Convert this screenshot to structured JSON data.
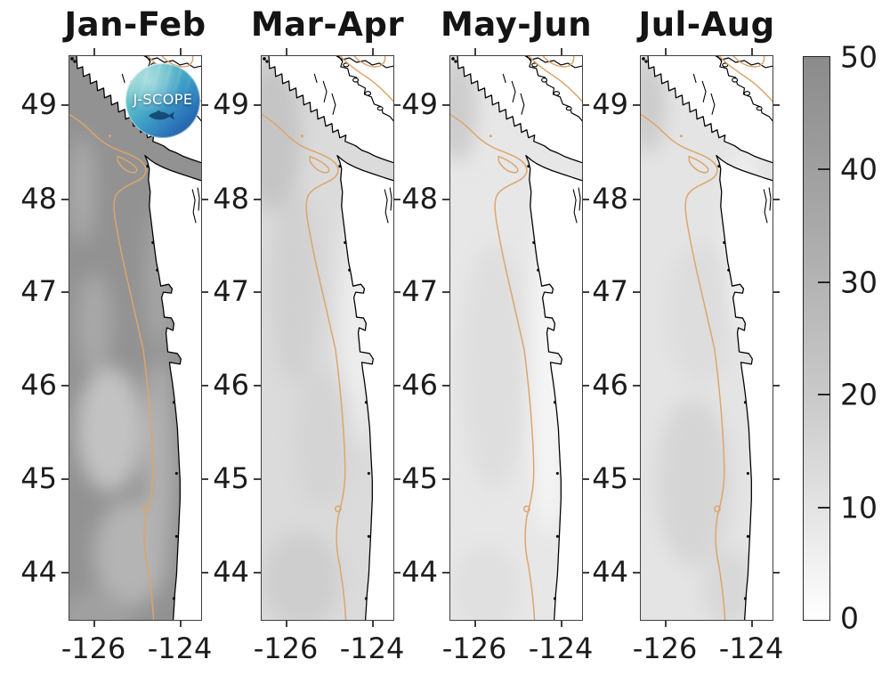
{
  "figure": {
    "background": "#ffffff",
    "logo": {
      "text": "J-SCOPE"
    }
  },
  "panels": [
    {
      "title": "Jan-Feb"
    },
    {
      "title": "Mar-Apr"
    },
    {
      "title": "May-Jun"
    },
    {
      "title": "Jul-Aug"
    }
  ],
  "axes": {
    "lat_ticks": [
      "49",
      "48",
      "47",
      "46",
      "45",
      "44"
    ],
    "lon_ticks": [
      "-126",
      "-124"
    ]
  },
  "colorbar": {
    "ticks": [
      "50",
      "40",
      "30",
      "20",
      "10",
      "0"
    ],
    "top_color": "#8b8b8b",
    "bottom_color": "#ffffff"
  },
  "colors": {
    "contour": "#dca56b",
    "coastline": "#000000",
    "land": "#ffffff"
  },
  "chart_data": {
    "type": "heatmap",
    "subtype": "geographic small-multiple maps with shared gray colorbar",
    "panels": [
      {
        "title": "Jan-Feb",
        "approx_offshore_value": 40,
        "approx_value_range": [
          20,
          48
        ],
        "tone": "dark gray — highest values, lighter patches nearshore and southwest"
      },
      {
        "title": "Mar-Apr",
        "approx_offshore_value": 15,
        "approx_value_range": [
          5,
          25
        ],
        "tone": "light gray, slightly darker in northwest corner"
      },
      {
        "title": "May-Jun",
        "approx_offshore_value": 9,
        "approx_value_range": [
          2,
          18
        ],
        "tone": "very light gray, nearly white nearshore"
      },
      {
        "title": "Jul-Aug",
        "approx_offshore_value": 12,
        "approx_value_range": [
          3,
          20
        ],
        "tone": "very light gray with slightly darker center-south blob"
      }
    ],
    "x_axis": {
      "ticks": [
        -126,
        -124
      ],
      "range": [
        -126.6,
        -123.5
      ],
      "label": ""
    },
    "y_axis": {
      "ticks": [
        49,
        48,
        47,
        46,
        45,
        44
      ],
      "range": [
        43.5,
        49.5
      ],
      "label": ""
    },
    "colorbar": {
      "min": 0,
      "max": 50,
      "ticks": [
        0,
        10,
        20,
        30,
        40,
        50
      ],
      "colormap": "white(0) to medium gray(50)",
      "position": "right"
    },
    "overlays": {
      "orange_contour_color": "#dca56b",
      "coastline_color": "#000000",
      "land_color": "#ffffff",
      "logo_text": "J-SCOPE"
    },
    "grid": false
  }
}
